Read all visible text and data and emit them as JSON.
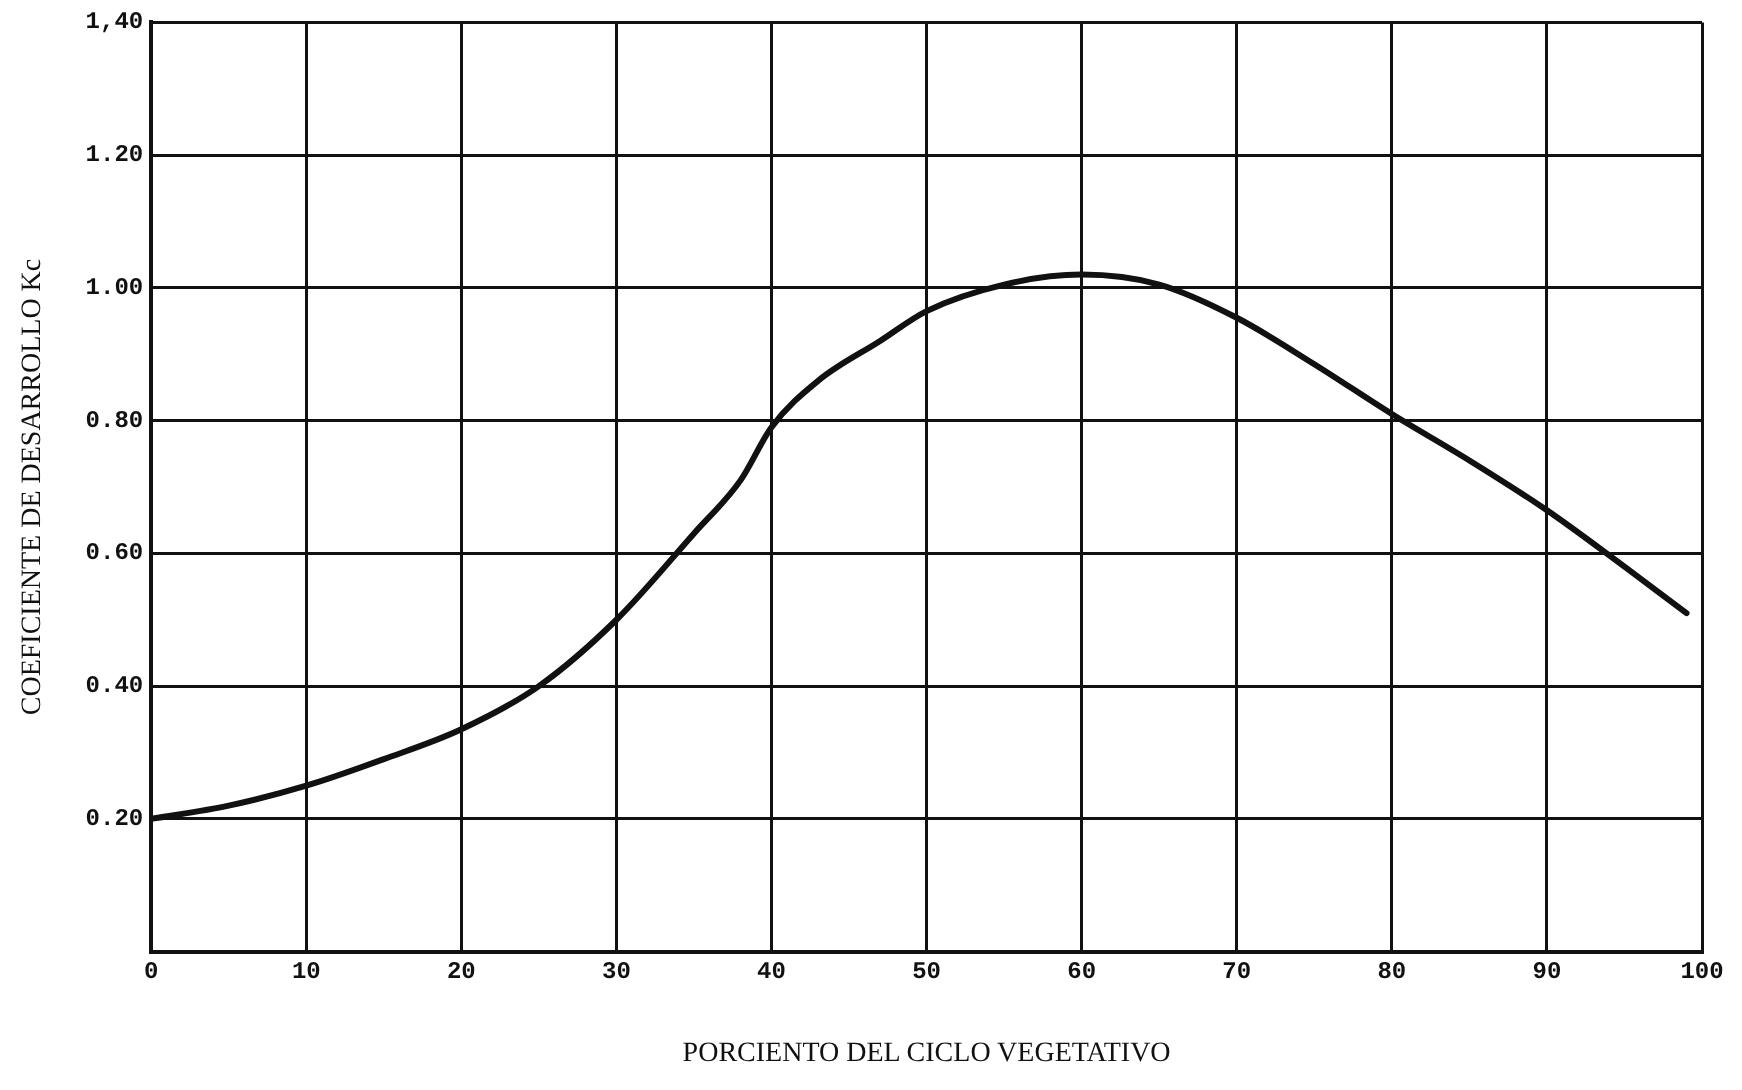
{
  "chart_data": {
    "type": "line",
    "xlabel": "PORCIENTO DEL CICLO VEGETATIVO",
    "ylabel": "COEFICIENTE DE DESARROLLO Kc",
    "x": [
      0,
      5,
      10,
      15,
      20,
      25,
      30,
      35,
      38,
      40,
      43,
      47,
      50,
      55,
      60,
      65,
      70,
      75,
      80,
      85,
      90,
      95,
      99
    ],
    "series": [
      {
        "color": "#111111",
        "values": [
          0.2,
          0.22,
          0.25,
          0.29,
          0.335,
          0.4,
          0.5,
          0.63,
          0.71,
          0.79,
          0.86,
          0.92,
          0.965,
          1.005,
          1.02,
          1.005,
          0.955,
          0.885,
          0.81,
          0.74,
          0.665,
          0.58,
          0.51
        ]
      }
    ],
    "xlim": [
      0,
      100
    ],
    "xticks": [
      0,
      10,
      20,
      30,
      40,
      50,
      60,
      70,
      80,
      90,
      100
    ],
    "ylim": [
      0,
      1.4
    ],
    "yticks": [
      {
        "value": 0,
        "label": null
      },
      {
        "value": 0.2,
        "label": "0.20"
      },
      {
        "value": 0.4,
        "label": "0.40"
      },
      {
        "value": 0.6,
        "label": "0.60"
      },
      {
        "value": 0.8,
        "label": "0.80"
      },
      {
        "value": 1,
        "label": "1.00"
      },
      {
        "value": 1.2,
        "label": "1.20"
      },
      {
        "value": 1.4,
        "label": "1,40"
      }
    ],
    "grid": true,
    "legend": false,
    "marker": "none",
    "line_style": "solid"
  }
}
